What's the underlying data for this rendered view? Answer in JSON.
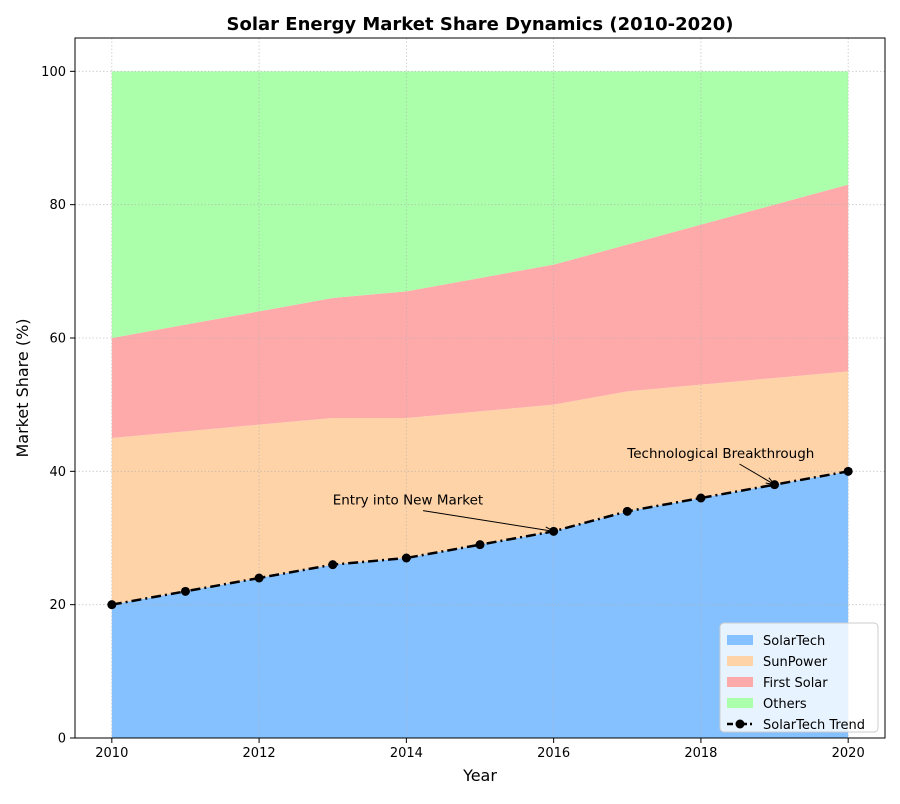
{
  "chart_data": {
    "type": "area",
    "stacked": true,
    "title": "Solar Energy Market Share Dynamics (2010-2020)",
    "xlabel": "Year",
    "ylabel": "Market Share (%)",
    "xlim": [
      2009.5,
      2020.5
    ],
    "ylim": [
      0,
      105
    ],
    "xticks": [
      2010,
      2012,
      2014,
      2016,
      2018,
      2020
    ],
    "yticks": [
      0,
      20,
      40,
      60,
      80,
      100
    ],
    "grid": true,
    "legend_position": "bottom-right",
    "x": [
      2010,
      2011,
      2012,
      2013,
      2014,
      2015,
      2016,
      2017,
      2018,
      2019,
      2020
    ],
    "series": [
      {
        "name": "SolarTech",
        "color": "#85c1ff",
        "values": [
          20,
          22,
          24,
          26,
          27,
          29,
          31,
          34,
          36,
          38,
          40
        ]
      },
      {
        "name": "SunPower",
        "color": "#ffd3a8",
        "values": [
          25,
          24,
          23,
          22,
          21,
          20,
          19,
          18,
          17,
          16,
          15
        ]
      },
      {
        "name": "First Solar",
        "color": "#ffaaaa",
        "values": [
          15,
          16,
          17,
          18,
          19,
          20,
          21,
          22,
          24,
          26,
          28
        ]
      },
      {
        "name": "Others",
        "color": "#abffab",
        "values": [
          40,
          38,
          36,
          34,
          33,
          31,
          29,
          26,
          23,
          20,
          17
        ]
      }
    ],
    "trend_line": {
      "name": "SolarTech Trend",
      "color": "#000000",
      "values": [
        20,
        22,
        24,
        26,
        27,
        29,
        31,
        34,
        36,
        38,
        40
      ]
    },
    "annotations": [
      {
        "text": "Entry into New Market",
        "x": 2016,
        "y": 31,
        "text_x": 2013,
        "text_y": 35
      },
      {
        "text": "Technological Breakthrough",
        "x": 2019,
        "y": 38,
        "text_x": 2017,
        "text_y": 42
      }
    ]
  }
}
